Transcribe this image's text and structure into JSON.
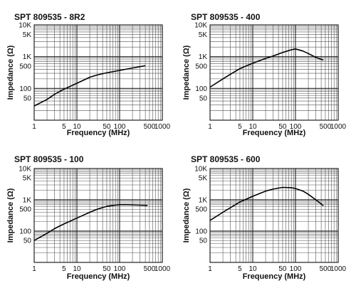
{
  "chart_data": [
    {
      "type": "line",
      "title": "SPT 809535 - 8R2",
      "xlabel": "Frequency (MHz)",
      "ylabel": "Impedance (Ω)",
      "xscale": "log",
      "yscale": "log",
      "xlim": [
        1,
        1000
      ],
      "ylim": [
        10,
        10000
      ],
      "grid": true,
      "x_tick_labels": [
        "1",
        "5",
        "10",
        "50",
        "100",
        "500",
        "1000"
      ],
      "y_tick_labels": [
        "10K",
        "5K",
        "1K",
        "500",
        "100",
        "50"
      ],
      "series": [
        {
          "x": [
            1,
            2,
            3,
            5,
            10,
            20,
            30,
            50,
            100,
            200,
            400
          ],
          "y": [
            28,
            45,
            65,
            95,
            145,
            225,
            265,
            310,
            370,
            440,
            520
          ]
        }
      ]
    },
    {
      "type": "line",
      "title": "SPT 809535 - 400",
      "xlabel": "Frequency (MHz)",
      "ylabel": "Impedance (Ω)",
      "xscale": "log",
      "yscale": "log",
      "xlim": [
        1,
        1000
      ],
      "ylim": [
        10,
        10000
      ],
      "grid": true,
      "x_tick_labels": [
        "1",
        "5",
        "10",
        "50",
        "100",
        "500",
        "1000"
      ],
      "y_tick_labels": [
        "10K",
        "5K",
        "1K",
        "500",
        "100",
        "50"
      ],
      "series": [
        {
          "x": [
            1,
            2,
            3,
            5,
            10,
            20,
            30,
            50,
            80,
            100,
            150,
            200,
            300,
            450
          ],
          "y": [
            110,
            200,
            280,
            420,
            620,
            880,
            1050,
            1350,
            1650,
            1750,
            1500,
            1250,
            950,
            780
          ]
        }
      ]
    },
    {
      "type": "line",
      "title": "SPT 809535 - 100",
      "xlabel": "Frequency (MHz)",
      "ylabel": "Impedance (Ω)",
      "xscale": "log",
      "yscale": "log",
      "xlim": [
        1,
        1000
      ],
      "ylim": [
        10,
        10000
      ],
      "grid": true,
      "x_tick_labels": [
        "1",
        "5",
        "10",
        "50",
        "100",
        "500",
        "1000"
      ],
      "y_tick_labels": [
        "10K",
        "5K",
        "1K",
        "500",
        "100",
        "50"
      ],
      "series": [
        {
          "x": [
            1,
            2,
            3,
            5,
            10,
            20,
            30,
            50,
            80,
            100,
            150,
            200,
            300,
            450
          ],
          "y": [
            50,
            85,
            120,
            170,
            260,
            400,
            500,
            620,
            680,
            700,
            700,
            690,
            680,
            660
          ]
        }
      ]
    },
    {
      "type": "line",
      "title": "SPT 809535 - 600",
      "xlabel": "Frequency (MHz)",
      "ylabel": "Impedance (Ω)",
      "xscale": "log",
      "yscale": "log",
      "xlim": [
        1,
        1000
      ],
      "ylim": [
        10,
        10000
      ],
      "grid": true,
      "x_tick_labels": [
        "1",
        "5",
        "10",
        "50",
        "100",
        "500",
        "1000"
      ],
      "y_tick_labels": [
        "10K",
        "5K",
        "1K",
        "500",
        "100",
        "50"
      ],
      "series": [
        {
          "x": [
            1,
            2,
            3,
            5,
            10,
            20,
            30,
            50,
            80,
            100,
            150,
            200,
            300,
            450
          ],
          "y": [
            220,
            400,
            560,
            850,
            1300,
            1900,
            2200,
            2500,
            2450,
            2300,
            1900,
            1500,
            1000,
            650
          ]
        }
      ]
    }
  ]
}
